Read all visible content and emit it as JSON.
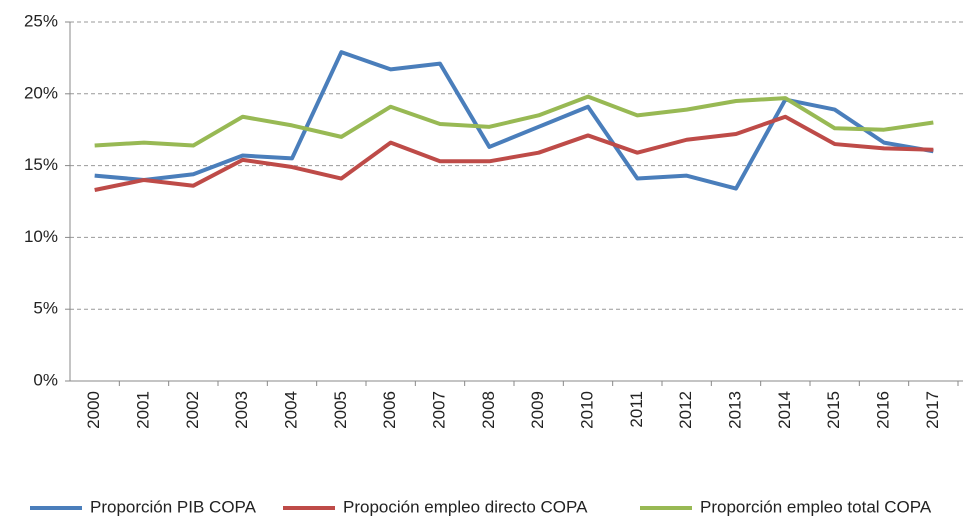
{
  "chart_data": {
    "type": "line",
    "categories": [
      "2000",
      "2001",
      "2002",
      "2003",
      "2004",
      "2005",
      "2006",
      "2007",
      "2008",
      "2009",
      "2010",
      "2011",
      "2012",
      "2013",
      "2014",
      "2015",
      "2016",
      "2017"
    ],
    "series": [
      {
        "name": "Proporción PIB COPA",
        "color": "#4a7ebb",
        "values": [
          14.3,
          14.0,
          14.4,
          15.7,
          15.5,
          22.9,
          21.7,
          22.1,
          16.3,
          17.7,
          19.1,
          14.1,
          14.3,
          13.4,
          19.6,
          18.9,
          16.6,
          16.0
        ]
      },
      {
        "name": "Propoción empleo directo COPA",
        "color": "#be4b48",
        "values": [
          13.3,
          14.0,
          13.6,
          15.4,
          14.9,
          14.1,
          16.6,
          15.3,
          15.3,
          15.9,
          17.1,
          15.9,
          16.8,
          17.2,
          18.4,
          16.5,
          16.2,
          16.1
        ]
      },
      {
        "name": "Proporción empleo total COPA",
        "color": "#98b954",
        "values": [
          16.4,
          16.6,
          16.4,
          18.4,
          17.8,
          17.0,
          19.1,
          17.9,
          17.7,
          18.5,
          19.8,
          18.5,
          18.9,
          19.5,
          19.7,
          17.6,
          17.5,
          18.0
        ]
      }
    ],
    "ylim": [
      0,
      25
    ],
    "yticks": [
      {
        "value": 0,
        "label": "0%"
      },
      {
        "value": 5,
        "label": "5%"
      },
      {
        "value": 10,
        "label": "10%"
      },
      {
        "value": 15,
        "label": "15%"
      },
      {
        "value": 20,
        "label": "20%"
      },
      {
        "value": 25,
        "label": "25%"
      }
    ],
    "grid": true
  }
}
